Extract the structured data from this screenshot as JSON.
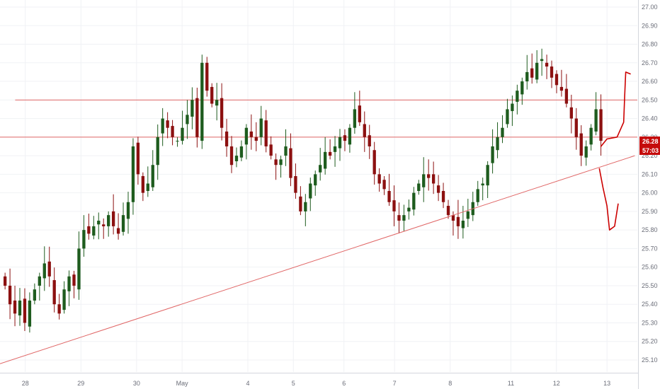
{
  "chart_data": {
    "type": "candlestick",
    "title": "",
    "xlabel": "",
    "ylabel": "",
    "ylim": [
      25.05,
      27.03
    ],
    "grid": true,
    "y_ticks": [
      "27.00",
      "26.90",
      "26.80",
      "26.70",
      "26.60",
      "26.50",
      "26.40",
      "26.30",
      "26.20",
      "26.10",
      "26.00",
      "25.90",
      "25.80",
      "25.70",
      "25.60",
      "25.50",
      "25.40",
      "25.30",
      "25.20",
      "25.10"
    ],
    "x_ticks": [
      {
        "label": "28",
        "x": 4
      },
      {
        "label": "29",
        "x": 15
      },
      {
        "label": "30",
        "x": 26
      },
      {
        "label": "May",
        "x": 35
      },
      {
        "label": "4",
        "x": 48
      },
      {
        "label": "5",
        "x": 57
      },
      {
        "label": "6",
        "x": 67
      },
      {
        "label": "7",
        "x": 77
      },
      {
        "label": "8",
        "x": 88
      },
      {
        "label": "11",
        "x": 100
      },
      {
        "label": "12",
        "x": 109
      },
      {
        "label": "13",
        "x": 119
      }
    ],
    "x_range": [
      -1,
      125
    ],
    "current_price": "26.28",
    "countdown": "57:03",
    "up_color": "#1e5c1e",
    "down_color": "#8c1010",
    "line_color": "#e06666",
    "annotation_color": "#cc0000",
    "horizontal_levels": [
      26.5,
      26.3
    ],
    "trendline": {
      "from": [
        -1,
        25.08
      ],
      "to": [
        124.5,
        26.2
      ]
    },
    "forecast_paths": [
      {
        "label": "up",
        "points": [
          [
            117.8,
            26.25
          ],
          [
            119,
            26.29
          ],
          [
            121,
            26.3
          ],
          [
            122.3,
            26.38
          ],
          [
            122.5,
            26.52
          ],
          [
            122.7,
            26.65
          ],
          [
            123.6,
            26.64
          ]
        ]
      },
      {
        "label": "down",
        "points": [
          [
            117.5,
            26.13
          ],
          [
            118.2,
            26.03
          ],
          [
            119,
            25.93
          ],
          [
            119.5,
            25.8
          ],
          [
            120.5,
            25.82
          ],
          [
            121.2,
            25.94
          ]
        ]
      }
    ],
    "candles": {
      "x_start": 0,
      "x_end": 117.8,
      "closes": [
        25.5,
        25.4,
        25.35,
        25.42,
        25.3,
        25.42,
        25.48,
        25.55,
        25.62,
        25.55,
        25.4,
        25.35,
        25.48,
        25.55,
        25.5,
        25.7,
        25.8,
        25.78,
        25.82,
        25.85,
        25.82,
        25.88,
        25.82,
        25.78,
        25.88,
        25.95,
        26.25,
        26.1,
        26.0,
        26.05,
        26.15,
        26.3,
        26.4,
        26.35,
        26.3,
        26.28,
        26.35,
        26.42,
        26.5,
        26.3,
        26.7,
        26.55,
        26.48,
        26.5,
        26.35,
        26.25,
        26.15,
        26.2,
        26.25,
        26.35,
        26.3,
        26.28,
        26.4,
        26.25,
        26.2,
        26.15,
        26.18,
        26.25,
        26.08,
        26.0,
        25.9,
        25.95,
        26.05,
        26.1,
        26.15,
        26.22,
        26.2,
        26.25,
        26.3,
        26.28,
        26.35,
        26.45,
        26.38,
        26.3,
        26.25,
        26.1,
        26.05,
        26.02,
        25.95,
        25.9,
        25.85,
        25.88,
        25.92,
        26.0,
        26.05,
        26.1,
        26.08,
        26.05,
        26.0,
        25.95,
        25.88,
        25.85,
        25.82,
        25.85,
        25.9,
        25.95,
        26.02,
        26.05,
        26.15,
        26.25,
        26.3,
        26.35,
        26.45,
        26.48,
        26.55,
        26.6,
        26.65,
        26.62,
        26.7,
        26.72,
        26.68,
        26.62,
        26.58,
        26.55,
        26.48,
        26.4,
        26.3,
        26.2,
        26.25,
        26.35,
        26.45,
        26.28
      ]
    }
  }
}
